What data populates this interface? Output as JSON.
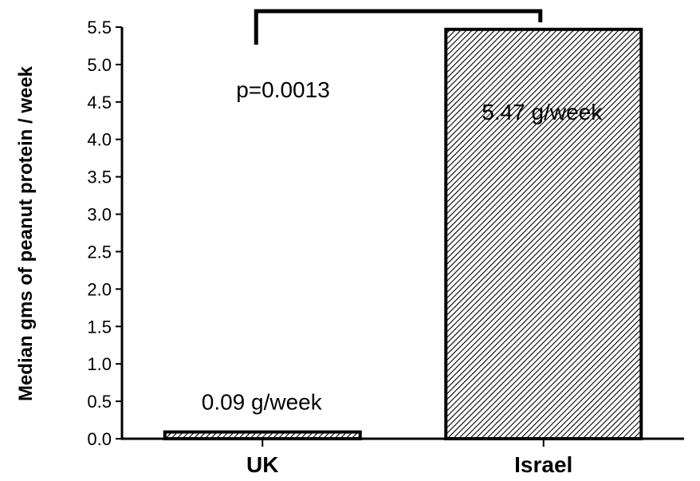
{
  "chart_data": {
    "type": "bar",
    "categories": [
      "UK",
      "Israel"
    ],
    "values": [
      0.09,
      5.47
    ],
    "value_labels": [
      "0.09 g/week",
      "5.47 g/week"
    ],
    "ylabel": "Median gms of peanut protein / week",
    "xlabel": "",
    "ylim": [
      0,
      5.5
    ],
    "yticks": [
      "0.0",
      "0.5",
      "1.0",
      "1.5",
      "2.0",
      "2.5",
      "3.0",
      "3.5",
      "4.0",
      "4.5",
      "5.0",
      "5.5"
    ],
    "significance": {
      "label": "p=0.0013",
      "between": [
        "UK",
        "Israel"
      ]
    },
    "bar_fill": "diagonal-hatch",
    "colors": {
      "bar_stroke": "#000000",
      "hatch": "#000000",
      "background": "#ffffff"
    },
    "grid": false,
    "legend": "none"
  }
}
